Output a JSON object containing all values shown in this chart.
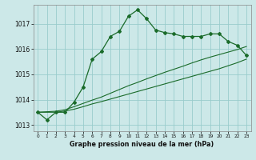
{
  "title": "Graphe pression niveau de la mer (hPa)",
  "bg_color": "#cce8e8",
  "grid_color": "#99cccc",
  "line_color": "#1a6b2a",
  "y_ticks": [
    1013,
    1014,
    1015,
    1016,
    1017
  ],
  "x_ticks": [
    0,
    1,
    2,
    3,
    4,
    5,
    6,
    7,
    8,
    9,
    10,
    11,
    12,
    13,
    14,
    15,
    16,
    17,
    18,
    19,
    20,
    21,
    22,
    23
  ],
  "series1": [
    1013.5,
    1013.2,
    1013.5,
    1013.5,
    1013.9,
    1014.5,
    1015.6,
    1015.9,
    1016.5,
    1016.7,
    1017.3,
    1017.55,
    1017.2,
    1016.75,
    1016.65,
    1016.6,
    1016.5,
    1016.5,
    1016.5,
    1016.6,
    1016.6,
    1016.3,
    1016.15,
    1015.75
  ],
  "series2": [
    1013.5,
    1013.52,
    1013.54,
    1013.6,
    1013.72,
    1013.85,
    1013.98,
    1014.1,
    1014.25,
    1014.4,
    1014.55,
    1014.68,
    1014.82,
    1014.95,
    1015.08,
    1015.2,
    1015.32,
    1015.45,
    1015.57,
    1015.68,
    1015.78,
    1015.88,
    1015.98,
    1016.1
  ],
  "series3": [
    1013.5,
    1013.5,
    1013.5,
    1013.55,
    1013.62,
    1013.72,
    1013.83,
    1013.92,
    1014.02,
    1014.12,
    1014.22,
    1014.32,
    1014.42,
    1014.52,
    1014.62,
    1014.72,
    1014.82,
    1014.92,
    1015.02,
    1015.12,
    1015.22,
    1015.34,
    1015.46,
    1015.6
  ],
  "ylim_min": 1012.75,
  "ylim_max": 1017.75
}
